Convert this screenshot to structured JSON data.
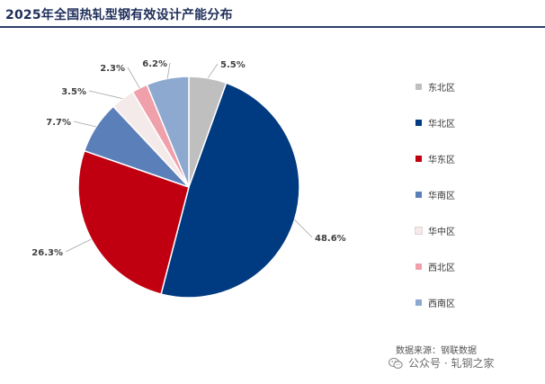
{
  "title": "2025年全国热轧型钢有效设计产能分布",
  "chart_data": {
    "type": "pie",
    "title": "2025年全国热轧型钢有效设计产能分布",
    "unit": "%",
    "slices": [
      {
        "label": "东北区",
        "value": 5.5,
        "display": "5.5%",
        "color": "#bfbfbf"
      },
      {
        "label": "华北区",
        "value": 48.6,
        "display": "48.6%",
        "color": "#003a80"
      },
      {
        "label": "华东区",
        "value": 26.3,
        "display": "26.3%",
        "color": "#c00010"
      },
      {
        "label": "华南区",
        "value": 7.7,
        "display": "7.7%",
        "color": "#5b7fb8"
      },
      {
        "label": "华中区",
        "value": 3.5,
        "display": "3.5%",
        "color": "#f5eaea"
      },
      {
        "label": "西北区",
        "value": 2.3,
        "display": "2.3%",
        "color": "#f0a0aa"
      },
      {
        "label": "西南区",
        "value": 6.2,
        "display": "6.2%",
        "color": "#8ea9d0"
      }
    ],
    "legend_position": "right"
  },
  "source": "数据来源：钢联数据",
  "watermark": "公众号 · 轧钢之家"
}
